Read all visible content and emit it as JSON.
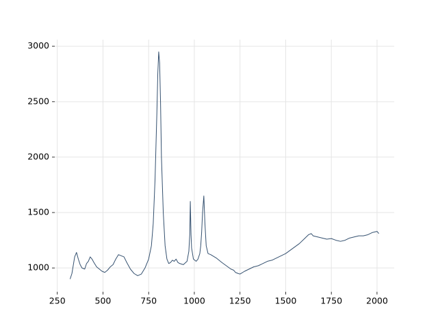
{
  "chart_data": {
    "type": "line",
    "x": [
      320,
      330,
      345,
      355,
      365,
      375,
      385,
      400,
      410,
      420,
      430,
      440,
      450,
      465,
      480,
      495,
      510,
      525,
      540,
      555,
      570,
      585,
      600,
      615,
      630,
      650,
      670,
      690,
      710,
      730,
      750,
      765,
      775,
      785,
      795,
      800,
      805,
      810,
      815,
      820,
      830,
      840,
      850,
      860,
      870,
      880,
      890,
      900,
      910,
      920,
      940,
      960,
      970,
      975,
      978,
      982,
      985,
      995,
      1010,
      1020,
      1030,
      1035,
      1040,
      1045,
      1052,
      1058,
      1065,
      1075,
      1090,
      1100,
      1120,
      1135,
      1150,
      1175,
      1200,
      1215,
      1225,
      1240,
      1250,
      1275,
      1300,
      1325,
      1350,
      1375,
      1400,
      1425,
      1450,
      1475,
      1500,
      1525,
      1550,
      1575,
      1600,
      1625,
      1640,
      1650,
      1675,
      1700,
      1725,
      1750,
      1775,
      1800,
      1825,
      1850,
      1875,
      1900,
      1925,
      1950,
      1975,
      2000,
      2010
    ],
    "series": [
      {
        "color": "#34506f",
        "values": [
          900,
          950,
          1100,
          1140,
          1080,
          1030,
          1000,
          990,
          1040,
          1060,
          1100,
          1080,
          1050,
          1010,
          990,
          970,
          960,
          980,
          1010,
          1030,
          1080,
          1120,
          1110,
          1100,
          1050,
          990,
          950,
          930,
          945,
          1000,
          1080,
          1200,
          1400,
          1800,
          2400,
          2750,
          2950,
          2850,
          2500,
          2000,
          1500,
          1200,
          1080,
          1040,
          1050,
          1070,
          1060,
          1080,
          1050,
          1040,
          1030,
          1060,
          1150,
          1300,
          1600,
          1300,
          1180,
          1080,
          1060,
          1080,
          1130,
          1200,
          1320,
          1500,
          1650,
          1400,
          1200,
          1130,
          1120,
          1110,
          1090,
          1070,
          1050,
          1020,
          990,
          980,
          960,
          950,
          945,
          970,
          990,
          1010,
          1020,
          1040,
          1060,
          1070,
          1090,
          1110,
          1130,
          1160,
          1190,
          1220,
          1260,
          1300,
          1310,
          1290,
          1280,
          1270,
          1260,
          1265,
          1250,
          1240,
          1250,
          1270,
          1280,
          1290,
          1290,
          1300,
          1320,
          1330,
          1310
        ]
      }
    ],
    "xlim": [
      236,
      2094
    ],
    "ylim": [
      785,
      3060
    ],
    "xticks": [
      250,
      500,
      750,
      1000,
      1250,
      1500,
      1750,
      2000
    ],
    "yticks": [
      1000,
      1500,
      2000,
      2500,
      3000
    ],
    "grid": true
  }
}
